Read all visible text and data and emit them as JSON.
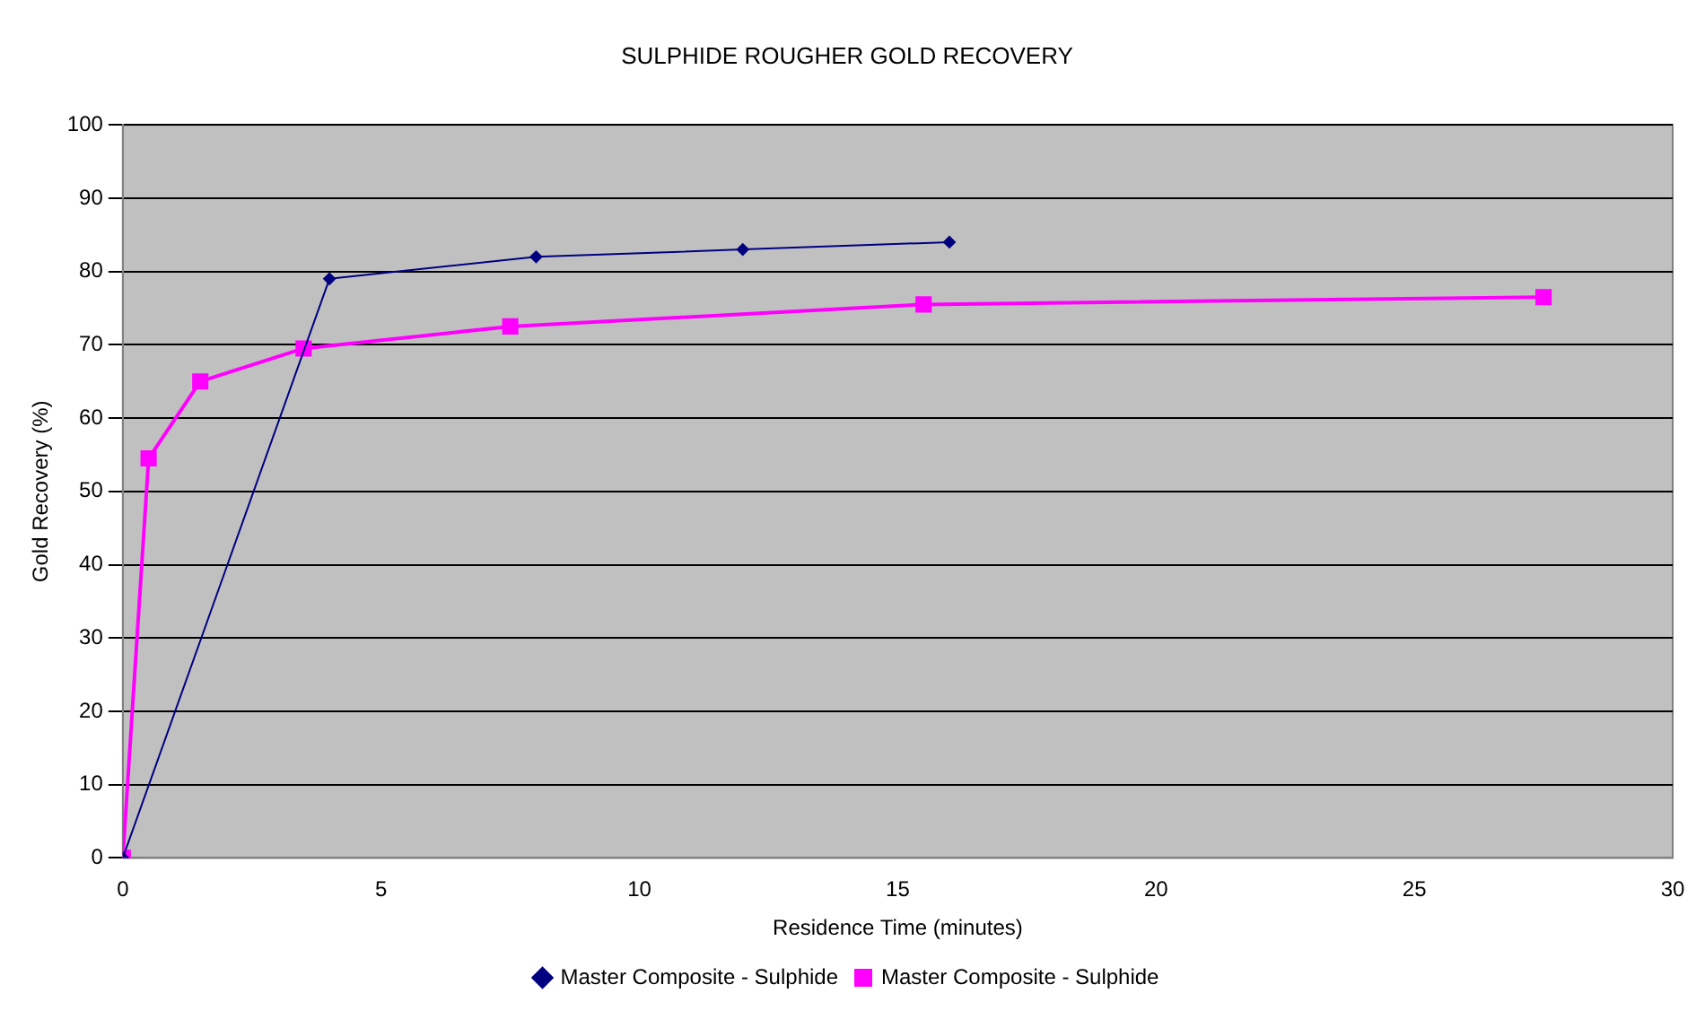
{
  "chart_data": {
    "type": "line",
    "title": "SULPHIDE ROUGHER GOLD RECOVERY",
    "xlabel": "Residence Time (minutes)",
    "ylabel": "Gold Recovery (%)",
    "series": [
      {
        "name": "Master Composite - Sulphide",
        "color": "#000080",
        "marker": "diamond",
        "x": [
          0,
          4,
          8,
          12,
          16
        ],
        "values": [
          0,
          79,
          82,
          83,
          84
        ]
      },
      {
        "name": "Master Composite - Sulphide",
        "color": "#ff00ff",
        "marker": "square",
        "x": [
          0,
          0.5,
          1.5,
          3.5,
          7.5,
          15.5,
          27.5
        ],
        "values": [
          0,
          54.5,
          65,
          69.5,
          72.5,
          75.5,
          76.5
        ]
      }
    ],
    "xlim": [
      0,
      30
    ],
    "xticks": [
      0,
      5,
      10,
      15,
      20,
      25,
      30
    ],
    "ylim": [
      0,
      100
    ],
    "yticks": [
      0,
      10,
      20,
      30,
      40,
      50,
      60,
      70,
      80,
      90,
      100
    ],
    "grid": "y",
    "legend": "bottom",
    "line_style": "solid"
  }
}
